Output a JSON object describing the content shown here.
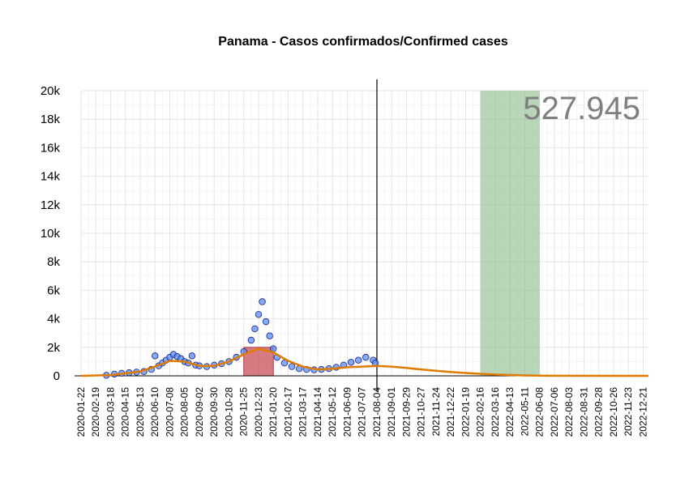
{
  "chart_data": {
    "type": "scatter",
    "title": "Panama - Casos confirmados/Confirmed cases",
    "total_label": "527.945",
    "xlabel": "",
    "ylabel": "",
    "x_range": [
      "2020-01-22",
      "2022-12-31"
    ],
    "ylim": [
      0,
      20000
    ],
    "y_ticks": [
      0,
      2000,
      4000,
      6000,
      8000,
      10000,
      12000,
      14000,
      16000,
      18000,
      20000
    ],
    "y_tick_labels": [
      "0",
      "2k",
      "4k",
      "6k",
      "8k",
      "10k",
      "12k",
      "14k",
      "16k",
      "18k",
      "20k"
    ],
    "x_tick_labels": [
      "2020-01-22",
      "2020-02-19",
      "2020-03-18",
      "2020-04-15",
      "2020-05-13",
      "2020-06-10",
      "2020-07-08",
      "2020-08-05",
      "2020-09-02",
      "2020-09-30",
      "2020-10-28",
      "2020-11-25",
      "2020-12-23",
      "2021-01-20",
      "2021-02-17",
      "2021-03-17",
      "2021-04-14",
      "2021-05-12",
      "2021-06-09",
      "2021-07-07",
      "2021-08-04",
      "2021-09-01",
      "2021-09-29",
      "2021-10-27",
      "2021-11-24",
      "2021-12-22",
      "2022-01-19",
      "2022-02-16",
      "2022-03-16",
      "2022-04-13",
      "2022-05-11",
      "2022-06-08",
      "2022-07-06",
      "2022-08-03",
      "2022-08-31",
      "2022-09-28",
      "2022-10-26",
      "2022-11-23",
      "2022-12-21"
    ],
    "grid": true,
    "today_line": "2021-08-04",
    "highlight_red": {
      "x0": "2020-11-25",
      "x1": "2021-01-20",
      "y_top": 2000
    },
    "highlight_green": {
      "x0": "2022-02-16",
      "x1": "2022-06-08"
    },
    "daily_cases": [
      {
        "x": "2020-03-10",
        "y": 40
      },
      {
        "x": "2020-03-25",
        "y": 120
      },
      {
        "x": "2020-04-08",
        "y": 180
      },
      {
        "x": "2020-04-22",
        "y": 220
      },
      {
        "x": "2020-05-06",
        "y": 260
      },
      {
        "x": "2020-05-20",
        "y": 300
      },
      {
        "x": "2020-06-03",
        "y": 450
      },
      {
        "x": "2020-06-10",
        "y": 1400
      },
      {
        "x": "2020-06-17",
        "y": 700
      },
      {
        "x": "2020-06-24",
        "y": 900
      },
      {
        "x": "2020-07-01",
        "y": 1100
      },
      {
        "x": "2020-07-08",
        "y": 1300
      },
      {
        "x": "2020-07-15",
        "y": 1500
      },
      {
        "x": "2020-07-22",
        "y": 1350
      },
      {
        "x": "2020-07-29",
        "y": 1200
      },
      {
        "x": "2020-08-05",
        "y": 1000
      },
      {
        "x": "2020-08-12",
        "y": 900
      },
      {
        "x": "2020-08-19",
        "y": 1400
      },
      {
        "x": "2020-08-26",
        "y": 750
      },
      {
        "x": "2020-09-02",
        "y": 700
      },
      {
        "x": "2020-09-16",
        "y": 650
      },
      {
        "x": "2020-09-30",
        "y": 750
      },
      {
        "x": "2020-10-14",
        "y": 850
      },
      {
        "x": "2020-10-28",
        "y": 1000
      },
      {
        "x": "2020-11-11",
        "y": 1300
      },
      {
        "x": "2020-11-25",
        "y": 1700
      },
      {
        "x": "2020-12-09",
        "y": 2500
      },
      {
        "x": "2020-12-16",
        "y": 3300
      },
      {
        "x": "2020-12-23",
        "y": 4300
      },
      {
        "x": "2020-12-30",
        "y": 5200
      },
      {
        "x": "2021-01-06",
        "y": 3800
      },
      {
        "x": "2021-01-13",
        "y": 2800
      },
      {
        "x": "2021-01-20",
        "y": 1900
      },
      {
        "x": "2021-01-27",
        "y": 1300
      },
      {
        "x": "2021-02-10",
        "y": 900
      },
      {
        "x": "2021-02-24",
        "y": 650
      },
      {
        "x": "2021-03-10",
        "y": 500
      },
      {
        "x": "2021-03-24",
        "y": 450
      },
      {
        "x": "2021-04-07",
        "y": 420
      },
      {
        "x": "2021-04-21",
        "y": 450
      },
      {
        "x": "2021-05-05",
        "y": 500
      },
      {
        "x": "2021-05-19",
        "y": 600
      },
      {
        "x": "2021-06-02",
        "y": 750
      },
      {
        "x": "2021-06-16",
        "y": 950
      },
      {
        "x": "2021-06-30",
        "y": 1100
      },
      {
        "x": "2021-07-14",
        "y": 1300
      },
      {
        "x": "2021-07-28",
        "y": 1100
      },
      {
        "x": "2021-08-01",
        "y": 900
      }
    ],
    "smoothed": [
      {
        "x": "2020-01-22",
        "y": 0
      },
      {
        "x": "2020-03-18",
        "y": 50
      },
      {
        "x": "2020-05-13",
        "y": 300
      },
      {
        "x": "2020-06-10",
        "y": 650
      },
      {
        "x": "2020-07-08",
        "y": 1050
      },
      {
        "x": "2020-08-05",
        "y": 1000
      },
      {
        "x": "2020-09-02",
        "y": 700
      },
      {
        "x": "2020-09-30",
        "y": 700
      },
      {
        "x": "2020-10-28",
        "y": 1000
      },
      {
        "x": "2020-11-25",
        "y": 1500
      },
      {
        "x": "2020-12-23",
        "y": 1900
      },
      {
        "x": "2021-01-20",
        "y": 1650
      },
      {
        "x": "2021-02-17",
        "y": 1050
      },
      {
        "x": "2021-03-17",
        "y": 650
      },
      {
        "x": "2021-04-14",
        "y": 450
      },
      {
        "x": "2021-05-12",
        "y": 500
      },
      {
        "x": "2021-06-09",
        "y": 600
      },
      {
        "x": "2021-07-07",
        "y": 650
      },
      {
        "x": "2021-08-04",
        "y": 700
      },
      {
        "x": "2021-09-01",
        "y": 650
      },
      {
        "x": "2021-09-29",
        "y": 550
      },
      {
        "x": "2021-10-27",
        "y": 450
      },
      {
        "x": "2021-11-24",
        "y": 350
      },
      {
        "x": "2021-12-22",
        "y": 270
      },
      {
        "x": "2022-01-19",
        "y": 200
      },
      {
        "x": "2022-02-16",
        "y": 140
      },
      {
        "x": "2022-03-16",
        "y": 90
      },
      {
        "x": "2022-04-13",
        "y": 55
      },
      {
        "x": "2022-05-11",
        "y": 30
      },
      {
        "x": "2022-06-08",
        "y": 15
      },
      {
        "x": "2022-07-06",
        "y": 5
      },
      {
        "x": "2022-12-31",
        "y": 0
      }
    ],
    "colors": {
      "points_fill": "#5b8ff9",
      "points_stroke": "#1a237e",
      "smooth_line": "#e07b00",
      "red_band": "#c0343f",
      "green_band": "#7fb77e",
      "grid": "#e6e6e6",
      "total_text": "#7f7f7f"
    }
  }
}
